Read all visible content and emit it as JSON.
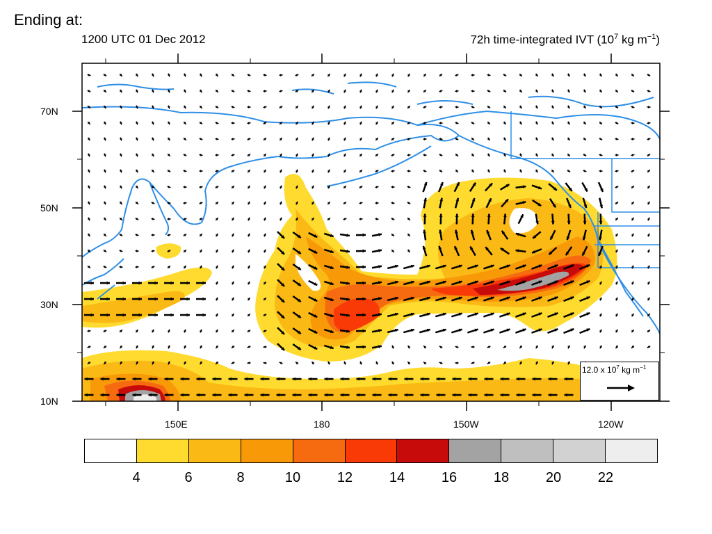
{
  "heading": "Ending at:",
  "subtitle_left": "1200 UTC 01 Dec 2012",
  "subtitle_right": "72h time-integrated IVT (10",
  "subtitle_right_exp": "7",
  "subtitle_right_tail": " kg m",
  "subtitle_right_exp2": "−1",
  "subtitle_right_close": ")",
  "lat_labels": [
    "70N",
    "50N",
    "30N",
    "10N"
  ],
  "lon_labels": [
    "150E",
    "180",
    "150W",
    "120W"
  ],
  "reference_vector": {
    "label": "12.0 x 10",
    "exp": "7",
    "unit": " kg m",
    "unit_exp": "−1"
  },
  "colorbar": {
    "colors": [
      "#ffffff",
      "#fedb2e",
      "#fbb915",
      "#f89a08",
      "#f66b10",
      "#f93a06",
      "#c70a0a",
      "#a3a3a3",
      "#bfbfbf",
      "#d2d2d2",
      "#eeeeee"
    ],
    "labels": [
      "4",
      "6",
      "8",
      "10",
      "12",
      "14",
      "16",
      "18",
      "20",
      "22"
    ]
  },
  "colors": {
    "coastline": "#2f8fe6",
    "arrow": "#000000"
  }
}
